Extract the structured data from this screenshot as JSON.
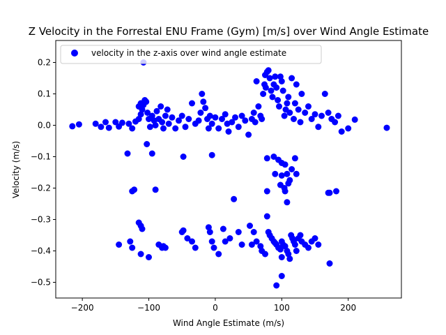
{
  "chart_data": {
    "type": "scatter",
    "title": "Z Velocity in the Forrestal ENU Frame (Gym) [m/s] over Wind Angle Estimate",
    "xlabel": "Wind Angle Estimate (m/s)",
    "ylabel": "Velocity (m/s)",
    "xlim": [
      -240,
      280
    ],
    "ylim": [
      -0.55,
      0.27
    ],
    "xticks": [
      -200,
      -100,
      0,
      100,
      200
    ],
    "yticks": [
      0.2,
      0.1,
      0.0,
      -0.1,
      -0.2,
      -0.3,
      -0.4,
      -0.5
    ],
    "xtick_labels": [
      "−200",
      "−100",
      "0",
      "100",
      "200"
    ],
    "ytick_labels": [
      "0.2",
      "0.1",
      "0.0",
      "−0.1",
      "−0.2",
      "−0.3",
      "−0.4",
      "−0.5"
    ],
    "grid": false,
    "legend_position": "upper-left",
    "marker_color": "#0000ff",
    "series": [
      {
        "name": "velocity in the z-axis over wind angle estimate",
        "points": [
          [
            -215,
            -0.003
          ],
          [
            -205,
            0.003
          ],
          [
            -180,
            0.005
          ],
          [
            -172,
            -0.005
          ],
          [
            -165,
            0.01
          ],
          [
            -160,
            -0.008
          ],
          [
            -150,
            0.01
          ],
          [
            -145,
            -0.004
          ],
          [
            -140,
            0.008
          ],
          [
            -130,
            0.005
          ],
          [
            -125,
            -0.01
          ],
          [
            -120,
            0.012
          ],
          [
            -115,
            0.02
          ],
          [
            -112,
            0.035
          ],
          [
            -110,
            0.05
          ],
          [
            -108,
            0.065
          ],
          [
            -106,
            0.08
          ],
          [
            -104,
            0.075
          ],
          [
            -102,
            0.04
          ],
          [
            -100,
            0.02
          ],
          [
            -98,
            -0.005
          ],
          [
            -95,
            0.03
          ],
          [
            -92,
            0.015
          ],
          [
            -90,
            0.0
          ],
          [
            -88,
            0.045
          ],
          [
            -85,
            0.02
          ],
          [
            -82,
            0.06
          ],
          [
            -80,
            0.01
          ],
          [
            -78,
            -0.01
          ],
          [
            -75,
            0.03
          ],
          [
            -72,
            0.05
          ],
          [
            -70,
            0.005
          ],
          [
            -65,
            0.025
          ],
          [
            -60,
            -0.01
          ],
          [
            -55,
            0.015
          ],
          [
            -50,
            0.03
          ],
          [
            -45,
            -0.005
          ],
          [
            -40,
            0.02
          ],
          [
            -35,
            0.07
          ],
          [
            -30,
            0.005
          ],
          [
            -25,
            0.015
          ],
          [
            -22,
            0.04
          ],
          [
            -20,
            0.1
          ],
          [
            -18,
            0.075
          ],
          [
            -15,
            0.055
          ],
          [
            -12,
            0.02
          ],
          [
            -10,
            -0.01
          ],
          [
            -8,
            0.03
          ],
          [
            -5,
            0.005
          ],
          [
            0,
            0.025
          ],
          [
            5,
            -0.01
          ],
          [
            10,
            0.02
          ],
          [
            15,
            0.035
          ],
          [
            18,
            0.005
          ],
          [
            20,
            -0.02
          ],
          [
            25,
            0.01
          ],
          [
            30,
            0.025
          ],
          [
            35,
            -0.005
          ],
          [
            40,
            0.03
          ],
          [
            45,
            0.015
          ],
          [
            50,
            -0.03
          ],
          [
            55,
            0.02
          ],
          [
            58,
            0.04
          ],
          [
            60,
            0.01
          ],
          [
            62,
            0.14
          ],
          [
            65,
            0.06
          ],
          [
            68,
            0.03
          ],
          [
            70,
            0.02
          ],
          [
            72,
            0.1
          ],
          [
            74,
            0.13
          ],
          [
            75,
            0.16
          ],
          [
            76,
            0.12
          ],
          [
            78,
            0.17
          ],
          [
            80,
            0.175
          ],
          [
            82,
            0.15
          ],
          [
            84,
            0.11
          ],
          [
            86,
            0.09
          ],
          [
            88,
            0.13
          ],
          [
            90,
            0.155
          ],
          [
            92,
            0.12
          ],
          [
            94,
            0.08
          ],
          [
            96,
            0.06
          ],
          [
            98,
            0.155
          ],
          [
            100,
            0.14
          ],
          [
            102,
            0.11
          ],
          [
            104,
            0.03
          ],
          [
            106,
            0.05
          ],
          [
            108,
            0.07
          ],
          [
            110,
            0.09
          ],
          [
            112,
            0.04
          ],
          [
            115,
            0.15
          ],
          [
            118,
            0.02
          ],
          [
            120,
            0.07
          ],
          [
            122,
            0.13
          ],
          [
            125,
            0.05
          ],
          [
            128,
            0.01
          ],
          [
            130,
            0.1
          ],
          [
            135,
            0.04
          ],
          [
            140,
            0.06
          ],
          [
            145,
            0.02
          ],
          [
            150,
            0.035
          ],
          [
            155,
            -0.005
          ],
          [
            160,
            0.03
          ],
          [
            165,
            0.1
          ],
          [
            170,
            0.04
          ],
          [
            175,
            0.02
          ],
          [
            180,
            0.01
          ],
          [
            185,
            0.03
          ],
          [
            190,
            -0.02
          ],
          [
            200,
            -0.01
          ],
          [
            210,
            0.018
          ],
          [
            258,
            -0.008
          ],
          [
            -108,
            0.2
          ],
          [
            -112,
            0.07
          ],
          [
            -115,
            0.06
          ],
          [
            -103,
            -0.06
          ],
          [
            -95,
            -0.09
          ],
          [
            -132,
            -0.09
          ],
          [
            -48,
            -0.1
          ],
          [
            -5,
            -0.095
          ],
          [
            78,
            -0.105
          ],
          [
            88,
            -0.1
          ],
          [
            95,
            -0.11
          ],
          [
            100,
            -0.12
          ],
          [
            105,
            -0.125
          ],
          [
            115,
            -0.14
          ],
          [
            120,
            -0.105
          ],
          [
            90,
            -0.155
          ],
          [
            100,
            -0.16
          ],
          [
            108,
            -0.155
          ],
          [
            112,
            -0.175
          ],
          [
            122,
            -0.155
          ],
          [
            98,
            -0.19
          ],
          [
            104,
            -0.2
          ],
          [
            110,
            -0.185
          ],
          [
            105,
            -0.21
          ],
          [
            170,
            -0.215
          ],
          [
            172,
            -0.215
          ],
          [
            182,
            -0.21
          ],
          [
            -122,
            -0.205
          ],
          [
            -125,
            -0.21
          ],
          [
            -90,
            -0.205
          ],
          [
            78,
            -0.21
          ],
          [
            108,
            -0.245
          ],
          [
            28,
            -0.235
          ],
          [
            -115,
            -0.31
          ],
          [
            -112,
            -0.32
          ],
          [
            -110,
            -0.33
          ],
          [
            -145,
            -0.38
          ],
          [
            -128,
            -0.37
          ],
          [
            -125,
            -0.39
          ],
          [
            -112,
            -0.41
          ],
          [
            -100,
            -0.42
          ],
          [
            -85,
            -0.38
          ],
          [
            -80,
            -0.39
          ],
          [
            -78,
            -0.385
          ],
          [
            -75,
            -0.39
          ],
          [
            -50,
            -0.34
          ],
          [
            -48,
            -0.335
          ],
          [
            -42,
            -0.36
          ],
          [
            -35,
            -0.37
          ],
          [
            -30,
            -0.39
          ],
          [
            -10,
            -0.325
          ],
          [
            -8,
            -0.34
          ],
          [
            -5,
            -0.37
          ],
          [
            -2,
            -0.39
          ],
          [
            5,
            -0.41
          ],
          [
            12,
            -0.33
          ],
          [
            15,
            -0.37
          ],
          [
            22,
            -0.36
          ],
          [
            35,
            -0.34
          ],
          [
            40,
            -0.38
          ],
          [
            52,
            -0.32
          ],
          [
            58,
            -0.34
          ],
          [
            62,
            -0.37
          ],
          [
            68,
            -0.385
          ],
          [
            70,
            -0.4
          ],
          [
            75,
            -0.41
          ],
          [
            78,
            -0.29
          ],
          [
            80,
            -0.34
          ],
          [
            82,
            -0.35
          ],
          [
            85,
            -0.36
          ],
          [
            88,
            -0.37
          ],
          [
            90,
            -0.375
          ],
          [
            92,
            -0.38
          ],
          [
            95,
            -0.39
          ],
          [
            98,
            -0.395
          ],
          [
            100,
            -0.37
          ],
          [
            102,
            -0.38
          ],
          [
            105,
            -0.385
          ],
          [
            108,
            -0.4
          ],
          [
            110,
            -0.41
          ],
          [
            112,
            -0.425
          ],
          [
            114,
            -0.35
          ],
          [
            116,
            -0.36
          ],
          [
            118,
            -0.37
          ],
          [
            120,
            -0.38
          ],
          [
            122,
            -0.4
          ],
          [
            125,
            -0.36
          ],
          [
            128,
            -0.35
          ],
          [
            130,
            -0.37
          ],
          [
            135,
            -0.38
          ],
          [
            140,
            -0.39
          ],
          [
            145,
            -0.37
          ],
          [
            150,
            -0.36
          ],
          [
            155,
            -0.38
          ],
          [
            172,
            -0.44
          ],
          [
            100,
            -0.48
          ],
          [
            92,
            -0.51
          ],
          [
            55,
            -0.38
          ],
          [
            100,
            -0.42
          ]
        ]
      }
    ]
  }
}
